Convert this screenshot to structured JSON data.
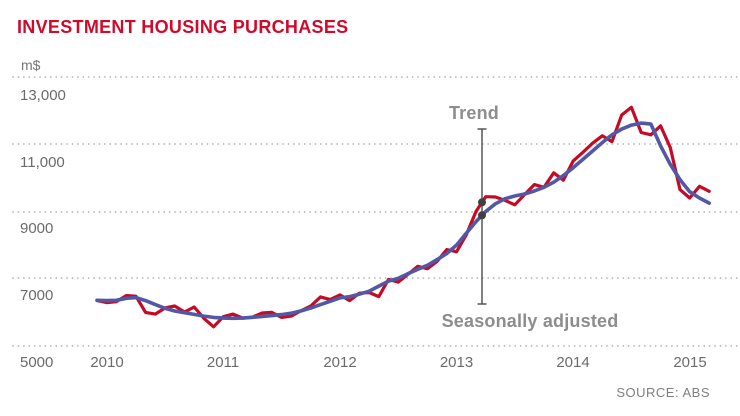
{
  "header": {
    "title": "INVESTMENT HOUSING PURCHASES"
  },
  "source": "SOURCE: ABS",
  "colors": {
    "title_red": "#d00a2b",
    "seasonal_red": "#c70a24",
    "trend_blue": "#5358a6",
    "gridline_gray": "#b5b5b5",
    "axis_gray": "#6b6b6b",
    "annotation_text_gray": "#8d8d8d",
    "annotation_line_gray": "#4b4b4b",
    "annotation_dot_gray": "#404040"
  },
  "chart_data": {
    "type": "line",
    "title": "INVESTMENT HOUSING PURCHASES",
    "ylabel": "m$",
    "xlabel": "",
    "ylim": [
      5000,
      13000
    ],
    "grid": "horizontal dotted",
    "legend": "inline annotation with connector line and dots",
    "y_ticks": [
      {
        "value": 13000,
        "label": "13,000"
      },
      {
        "value": 11000,
        "label": "11,000"
      },
      {
        "value": 9000,
        "label": "9000"
      },
      {
        "value": 7000,
        "label": "7000"
      },
      {
        "value": 5000,
        "label": "5000"
      }
    ],
    "x_ticks": [
      "2010",
      "2011",
      "2012",
      "2013",
      "2014",
      "2015"
    ],
    "annotations": [
      {
        "label": "Trend",
        "series": "Trend"
      },
      {
        "label": "Seasonally adjusted",
        "series": "Seasonally adjusted",
        "at_month": "2013-04"
      }
    ],
    "months": [
      "2009-12",
      "2010-01",
      "2010-02",
      "2010-03",
      "2010-04",
      "2010-05",
      "2010-06",
      "2010-07",
      "2010-08",
      "2010-09",
      "2010-10",
      "2010-11",
      "2010-12",
      "2011-01",
      "2011-02",
      "2011-03",
      "2011-04",
      "2011-05",
      "2011-06",
      "2011-07",
      "2011-08",
      "2011-09",
      "2011-10",
      "2011-11",
      "2011-12",
      "2012-01",
      "2012-02",
      "2012-03",
      "2012-04",
      "2012-05",
      "2012-06",
      "2012-07",
      "2012-08",
      "2012-09",
      "2012-10",
      "2012-11",
      "2012-12",
      "2013-01",
      "2013-02",
      "2013-03",
      "2013-04",
      "2013-05",
      "2013-06",
      "2013-07",
      "2013-08",
      "2013-09",
      "2013-10",
      "2013-11",
      "2013-12",
      "2014-01",
      "2014-02",
      "2014-03",
      "2014-04",
      "2014-05",
      "2014-06",
      "2014-07",
      "2014-08",
      "2014-09",
      "2014-10",
      "2014-11",
      "2014-12",
      "2015-01",
      "2015-02",
      "2015-03"
    ],
    "series": [
      {
        "name": "Seasonally adjusted",
        "color": "#c70a24",
        "values": [
          6350,
          6290,
          6320,
          6500,
          6480,
          6000,
          5950,
          6130,
          6190,
          6010,
          6160,
          5820,
          5570,
          5870,
          5950,
          5830,
          5860,
          5980,
          6000,
          5850,
          5890,
          6050,
          6190,
          6460,
          6380,
          6520,
          6350,
          6570,
          6590,
          6470,
          6980,
          6900,
          7130,
          7370,
          7300,
          7520,
          7870,
          7800,
          8300,
          9000,
          9440,
          9430,
          9330,
          9200,
          9500,
          9800,
          9720,
          10150,
          9930,
          10500,
          10760,
          11030,
          11250,
          11080,
          11870,
          12100,
          11350,
          11280,
          11550,
          10900,
          9650,
          9400,
          9750,
          9600
        ]
      },
      {
        "name": "Trend",
        "color": "#5358a6",
        "values": [
          6360,
          6350,
          6360,
          6420,
          6440,
          6350,
          6230,
          6120,
          6040,
          5990,
          5940,
          5890,
          5850,
          5830,
          5825,
          5830,
          5855,
          5880,
          5905,
          5935,
          5975,
          6045,
          6130,
          6230,
          6330,
          6430,
          6470,
          6540,
          6630,
          6780,
          6930,
          7010,
          7150,
          7280,
          7400,
          7570,
          7750,
          8000,
          8350,
          8700,
          9000,
          9230,
          9380,
          9460,
          9520,
          9610,
          9720,
          9870,
          10070,
          10300,
          10550,
          10800,
          11050,
          11280,
          11450,
          11570,
          11630,
          11600,
          10950,
          10400,
          9950,
          9590,
          9400,
          9250
        ]
      }
    ]
  }
}
